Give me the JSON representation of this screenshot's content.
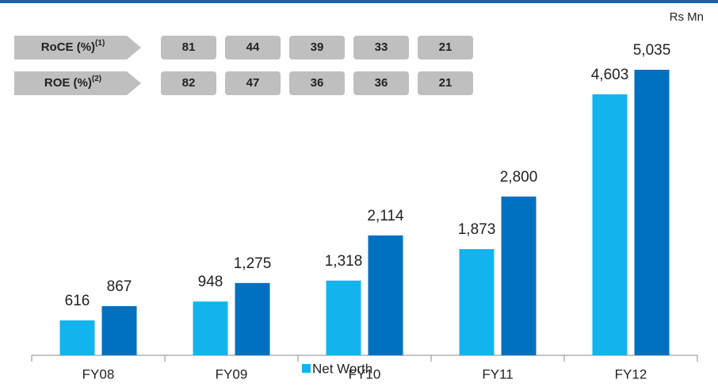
{
  "chart_data": {
    "type": "bar",
    "unit_label": "Rs Mn",
    "categories": [
      "FY08",
      "FY09",
      "FY10",
      "FY11",
      "FY12"
    ],
    "series": [
      {
        "name": "Net Worth",
        "color": "#13b4ee",
        "values": [
          616,
          948,
          1318,
          1873,
          4603
        ],
        "value_labels": [
          "616",
          "948",
          "1,318",
          "1,873",
          "4,603"
        ]
      },
      {
        "color": "#0070c0",
        "values": [
          867,
          1275,
          2114,
          2800,
          5035
        ],
        "value_labels": [
          "867",
          "1,275",
          "2,114",
          "2,800",
          "5,035"
        ]
      }
    ],
    "ylim": [
      0,
      6000
    ],
    "metrics": [
      {
        "label": "RoCE (%)",
        "note": "(1)",
        "values": [
          81,
          44,
          39,
          33,
          21
        ]
      },
      {
        "label": "ROE (%)",
        "note": "(2)",
        "values": [
          82,
          47,
          36,
          36,
          21
        ]
      }
    ]
  }
}
